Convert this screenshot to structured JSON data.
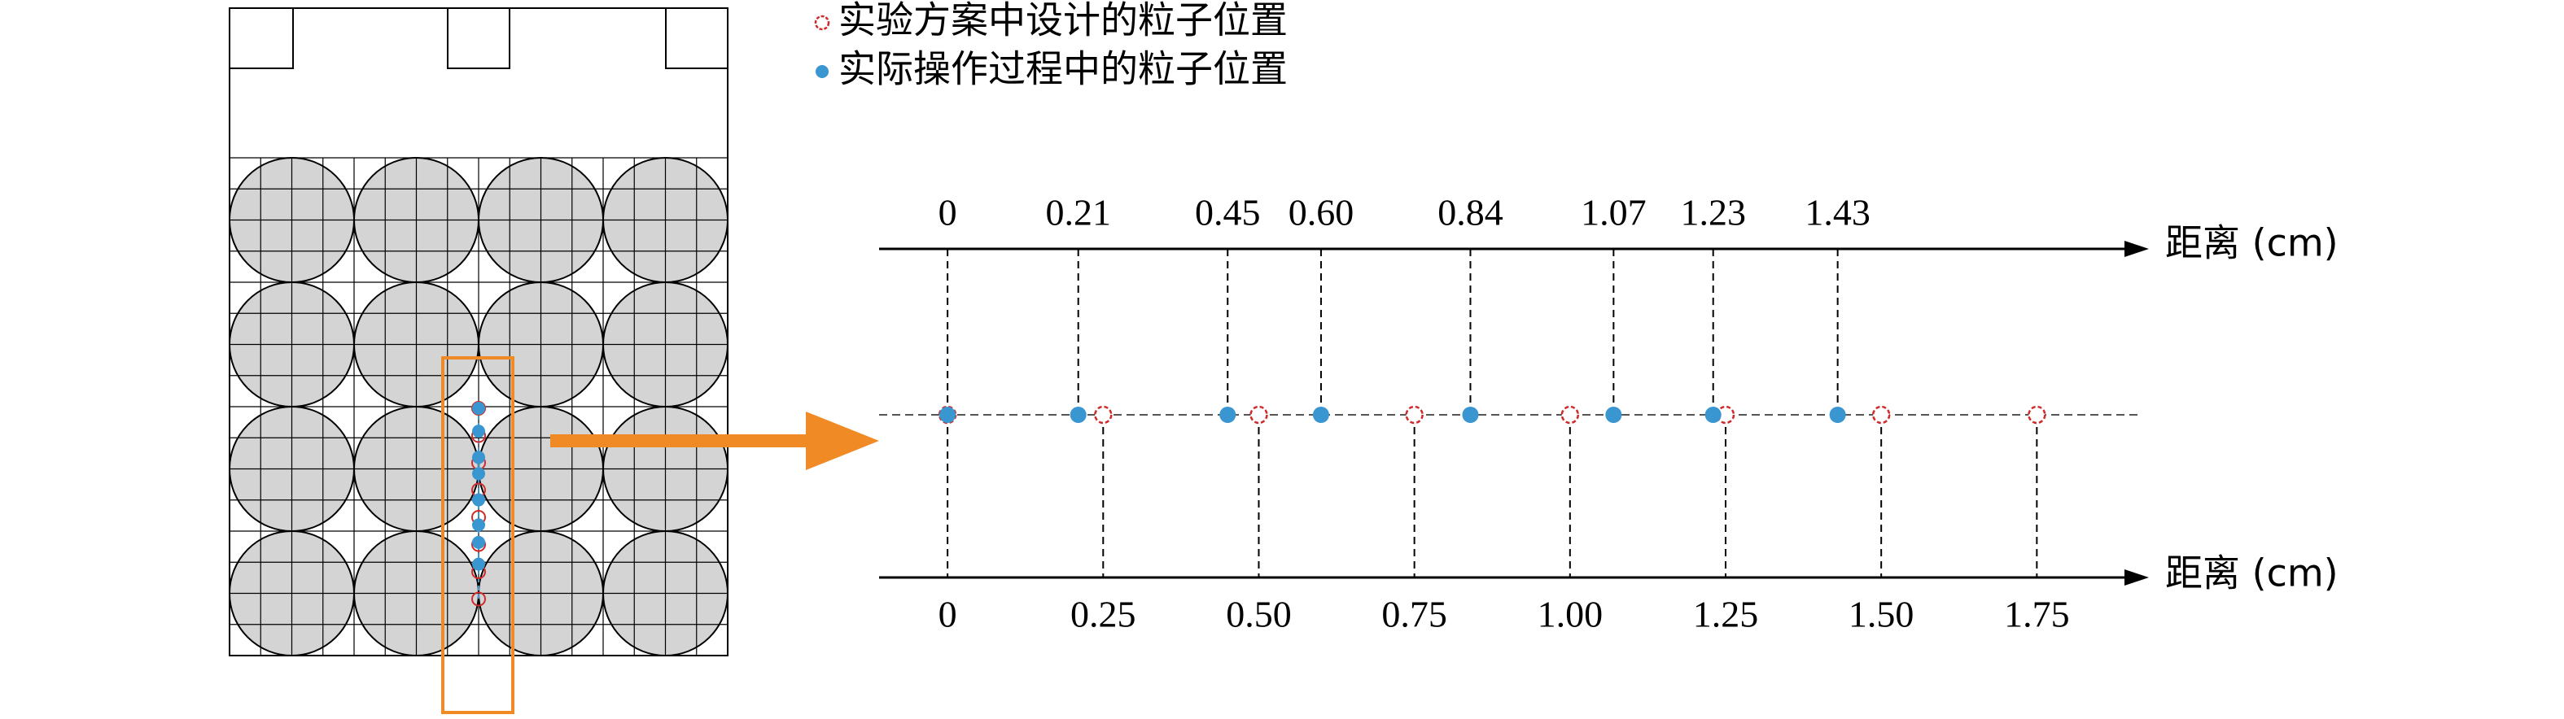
{
  "chart_data": {
    "type": "strip",
    "xlabel": "距离 (cm)",
    "xlim": [
      -0.11,
      1.93
    ],
    "top_xticks": [
      0,
      0.21,
      0.45,
      {
        "value": 0.6,
        "label": "0.60"
      },
      0.84,
      1.07,
      1.23,
      1.43
    ],
    "xticks": [
      0,
      0.25,
      {
        "value": 0.5,
        "label": "0.50"
      },
      0.75,
      {
        "value": 1,
        "label": "1.00"
      },
      1.25,
      {
        "value": 1.5,
        "label": "1.50"
      },
      1.75
    ],
    "series": [
      {
        "name": "实验方案中设计的粒子位置",
        "color": "#d02a2a",
        "marker": "open",
        "values": [
          0,
          0.25,
          0.5,
          0.75,
          1,
          1.25,
          1.5,
          1.75
        ]
      },
      {
        "name": "实际操作过程中的粒子位置",
        "color": "#3a96d0",
        "marker": "filled",
        "values": [
          0,
          0.21,
          0.45,
          0.6,
          0.84,
          1.07,
          1.23,
          1.43
        ]
      }
    ]
  }
}
